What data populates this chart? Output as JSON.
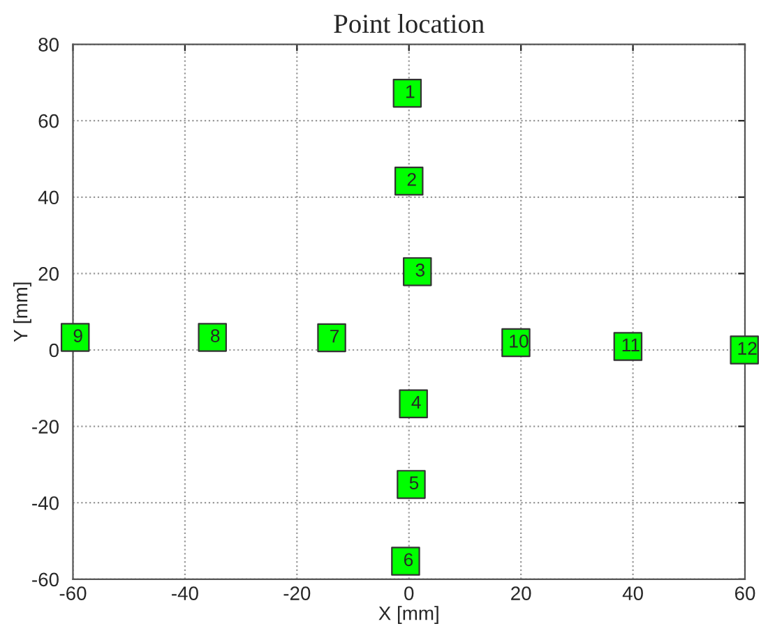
{
  "chart_data": {
    "type": "scatter",
    "title": "Point location",
    "xlabel": "X [mm]",
    "ylabel": "Y [mm]",
    "x": [
      -0.3,
      0,
      1.5,
      0.8,
      0.4,
      -0.6,
      -13.8,
      -35.1,
      -59.6,
      19.1,
      39.1,
      59.9
    ],
    "values": [
      67.2,
      44.2,
      20.5,
      -14.1,
      -35.2,
      -55.3,
      3.2,
      3.3,
      3.3,
      1.9,
      0.9,
      0
    ],
    "annotations": [
      {
        "text": "1",
        "x": -0.3,
        "y": 67.2
      },
      {
        "text": "2",
        "x": 0,
        "y": 44.2
      },
      {
        "text": "3",
        "x": 1.5,
        "y": 20.5
      },
      {
        "text": "4",
        "x": 0.8,
        "y": -14.1
      },
      {
        "text": "5",
        "x": 0.4,
        "y": -35.2
      },
      {
        "text": "6",
        "x": -0.6,
        "y": -55.3
      },
      {
        "text": "7",
        "x": -13.8,
        "y": 3.2
      },
      {
        "text": "8",
        "x": -35.1,
        "y": 3.3
      },
      {
        "text": "9",
        "x": -59.6,
        "y": 3.3
      },
      {
        "text": "10",
        "x": 19.1,
        "y": 1.9
      },
      {
        "text": "11",
        "x": 39.1,
        "y": 0.9
      },
      {
        "text": "12",
        "x": 59.9,
        "y": 0
      }
    ],
    "color": "#00ff00",
    "marker": "square",
    "grid": true,
    "line_style": "dotted",
    "xlim": [
      -60,
      60
    ],
    "xticks": [
      -60,
      -40,
      -20,
      0,
      20,
      40,
      60
    ],
    "ylim": [
      -60,
      80
    ],
    "yticks": [
      -60,
      -40,
      -20,
      0,
      20,
      40,
      60,
      80
    ]
  }
}
